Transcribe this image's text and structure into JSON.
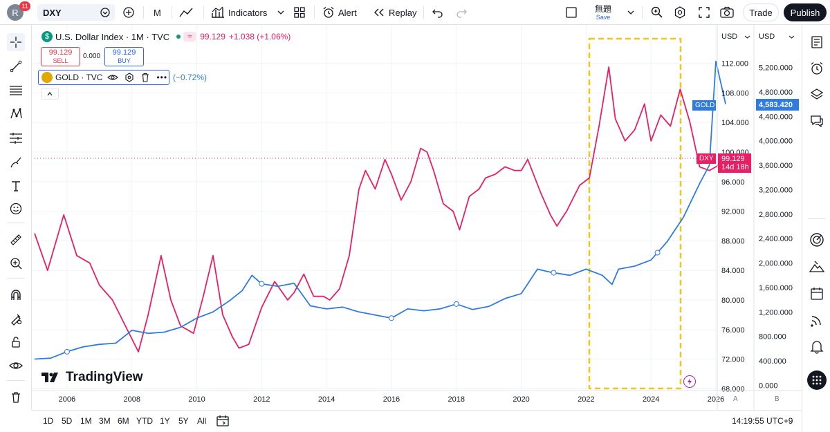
{
  "top_bar": {
    "avatar_letter": "R",
    "notification_count": "11",
    "symbol": "DXY",
    "interval": "M",
    "indicators_label": "Indicators",
    "alert_label": "Alert",
    "replay_label": "Replay",
    "layout_name": "無題",
    "save_label": "Save",
    "trade_label": "Trade",
    "publish_label": "Publish"
  },
  "legend": {
    "title": "U.S. Dollar Index · 1M · TVC",
    "last_price": "99.129",
    "change": "+1.038 (+1.06%)",
    "sell_price": "99.129",
    "sell_label": "SELL",
    "spread": "0.000",
    "buy_price": "99.129",
    "buy_label": "BUY",
    "overlay_symbol": "GOLD · TVC",
    "overlay_change": "(−0.72%)"
  },
  "price_axes": {
    "left_currency": "USD",
    "right_currency": "USD",
    "left_scale_label": "A",
    "right_scale_label": "B",
    "dxy_ticks": [
      "112.000",
      "108.000",
      "104.000",
      "100.000",
      "96.000",
      "92.000",
      "88.000",
      "84.000",
      "80.000",
      "76.000",
      "72.000",
      "68.000"
    ],
    "gold_ticks": [
      "5,200.000",
      "4,800.000",
      "4,400.000",
      "4,000.000",
      "3,600.000",
      "3,200.000",
      "2,800.000",
      "2,400.000",
      "2,000.000",
      "1,600.000",
      "1,200.000",
      "800.000",
      "400.000",
      "0.000"
    ],
    "dxy_tag_label": "DXY",
    "dxy_tag_price": "99.129",
    "dxy_tag_countdown": "14d 18h",
    "gold_tag_label": "GOLD",
    "gold_tag_price": "4,583.420"
  },
  "time_axis": {
    "labels": [
      "2006",
      "2008",
      "2010",
      "2012",
      "2014",
      "2016",
      "2018",
      "2020",
      "2022",
      "2024",
      "2026"
    ]
  },
  "watermark": "TradingView",
  "bottom_bar": {
    "ranges": [
      "1D",
      "5D",
      "1M",
      "3M",
      "6M",
      "YTD",
      "1Y",
      "5Y",
      "All"
    ],
    "clock": "14:19:55 UTC+9"
  },
  "colors": {
    "dxy_line": "#e91e63",
    "gold_line": "#2f7ae5",
    "highlight_box": "#f5c518",
    "dark": "#131722"
  },
  "chart_data": {
    "type": "line",
    "x_start": "2005",
    "x_end": "2026",
    "series": [
      {
        "name": "DXY",
        "axis": "left",
        "x": [
          2005.0,
          2005.4,
          2005.9,
          2006.3,
          2006.7,
          2007.0,
          2007.4,
          2007.8,
          2008.2,
          2008.5,
          2008.9,
          2009.2,
          2009.5,
          2009.9,
          2010.2,
          2010.5,
          2010.8,
          2011.1,
          2011.3,
          2011.6,
          2012.0,
          2012.4,
          2012.8,
          2013.0,
          2013.3,
          2013.6,
          2013.9,
          2014.1,
          2014.4,
          2014.7,
          2015.0,
          2015.2,
          2015.5,
          2015.8,
          2016.0,
          2016.3,
          2016.6,
          2016.9,
          2017.1,
          2017.3,
          2017.6,
          2017.9,
          2018.1,
          2018.4,
          2018.7,
          2018.9,
          2019.2,
          2019.5,
          2019.8,
          2020.0,
          2020.2,
          2020.6,
          2020.9,
          2021.1,
          2021.4,
          2021.8,
          2022.1,
          2022.4,
          2022.7,
          2022.9,
          2023.2,
          2023.5,
          2023.8,
          2024.0,
          2024.3,
          2024.6,
          2024.9,
          2025.2,
          2025.5,
          2025.8,
          2026.0,
          2026.3
        ],
        "values": [
          89.0,
          84.0,
          91.5,
          86.0,
          85.0,
          82.0,
          80.0,
          76.5,
          73.0,
          78.0,
          86.0,
          80.0,
          76.5,
          75.5,
          80.5,
          86.0,
          78.0,
          75.0,
          73.5,
          74.0,
          79.0,
          82.5,
          80.0,
          81.0,
          83.5,
          80.5,
          80.5,
          80.0,
          81.5,
          86.0,
          95.0,
          97.5,
          95.0,
          99.0,
          97.0,
          93.5,
          96.0,
          100.5,
          100.0,
          97.5,
          93.0,
          92.0,
          89.5,
          94.0,
          95.0,
          96.5,
          97.0,
          98.0,
          97.5,
          97.5,
          99.0,
          94.5,
          91.5,
          90.0,
          92.0,
          95.5,
          96.5,
          103.5,
          111.5,
          104.5,
          101.5,
          103.0,
          106.5,
          101.5,
          105.0,
          103.5,
          108.5,
          104.0,
          98.0,
          97.5,
          98.0,
          99.1
        ]
      },
      {
        "name": "GOLD",
        "axis": "right",
        "x": [
          2005.0,
          2005.5,
          2006.0,
          2006.5,
          2007.0,
          2007.5,
          2008.0,
          2008.5,
          2009.0,
          2009.5,
          2010.0,
          2010.5,
          2011.0,
          2011.4,
          2011.7,
          2012.0,
          2012.5,
          2013.0,
          2013.5,
          2014.0,
          2014.5,
          2015.0,
          2015.5,
          2016.0,
          2016.5,
          2017.0,
          2017.5,
          2018.0,
          2018.5,
          2019.0,
          2019.5,
          2020.0,
          2020.5,
          2020.9,
          2021.5,
          2022.0,
          2022.5,
          2022.8,
          2023.0,
          2023.5,
          2024.0,
          2024.5,
          2025.0,
          2025.5,
          2025.8,
          2026.0,
          2026.3
        ],
        "values": [
          430,
          445,
          550,
          630,
          670,
          690,
          900,
          850,
          870,
          950,
          1100,
          1200,
          1380,
          1550,
          1800,
          1660,
          1620,
          1670,
          1300,
          1250,
          1280,
          1200,
          1150,
          1100,
          1250,
          1220,
          1250,
          1330,
          1240,
          1290,
          1420,
          1500,
          1900,
          1850,
          1800,
          1900,
          1800,
          1650,
          1900,
          1950,
          2050,
          2350,
          2750,
          3300,
          3600,
          5300,
          4600
        ]
      }
    ],
    "ylim_left": [
      68,
      112
    ],
    "ylim_right": [
      0,
      5200
    ],
    "grid": true,
    "legend_placement": "top-left"
  }
}
